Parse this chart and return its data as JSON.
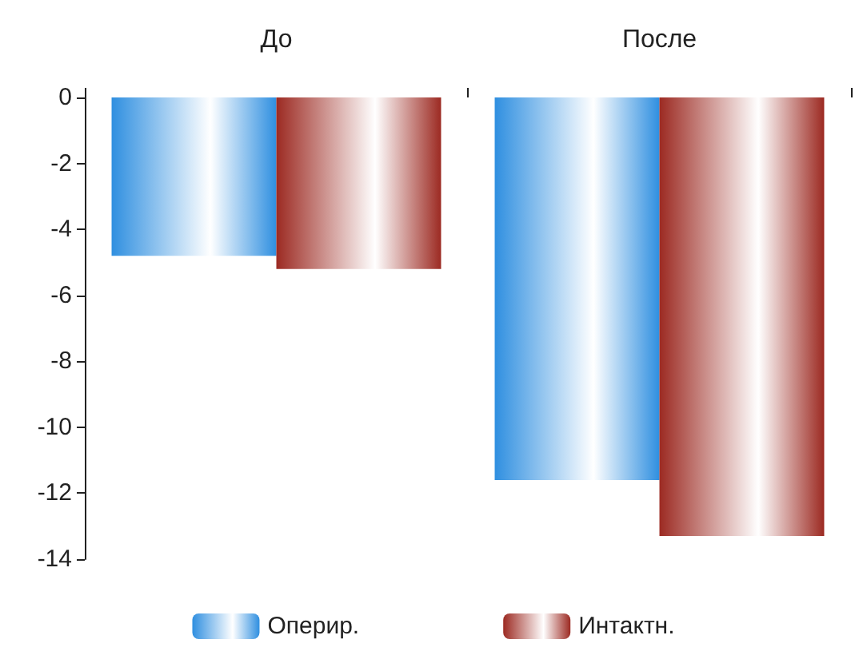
{
  "chart_data": {
    "type": "bar",
    "categories": [
      "До",
      "После"
    ],
    "series": [
      {
        "name": "Оперир.",
        "color": "#2f8fe0",
        "values": [
          -4.8,
          -11.6
        ]
      },
      {
        "name": "Интактн.",
        "color": "#9c2a22",
        "values": [
          -5.2,
          -13.3
        ]
      }
    ],
    "ylim": [
      -14,
      0
    ],
    "yticks": [
      0,
      -2,
      -4,
      -6,
      -8,
      -10,
      -12,
      -14
    ],
    "grid": false,
    "legend": "bottom"
  }
}
